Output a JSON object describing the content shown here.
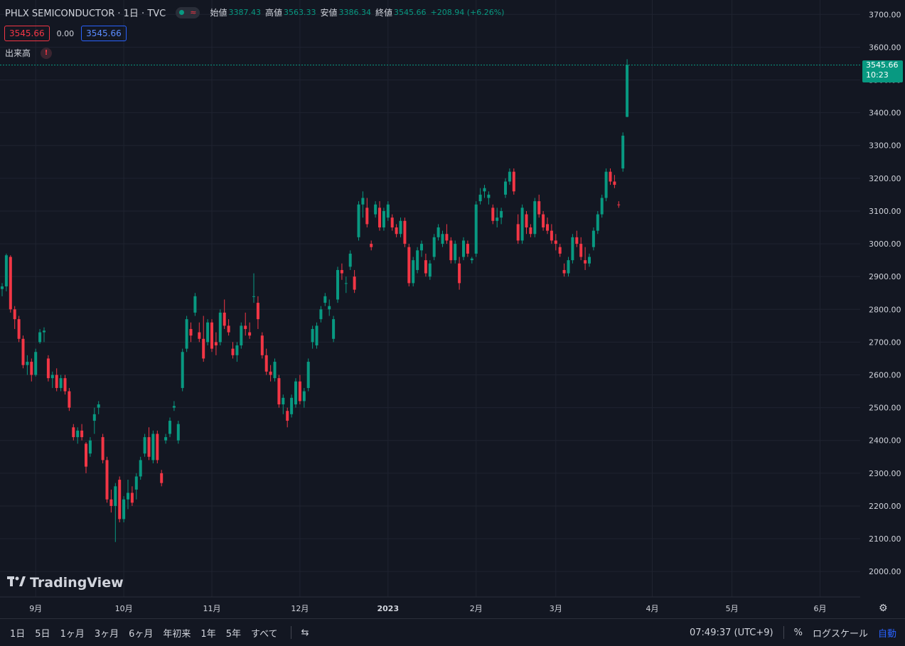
{
  "legend": {
    "symbol": "PHLX SEMICONDUCTOR · 1日 · TVC",
    "open_label": "始値",
    "open": "3387.43",
    "high_label": "高値",
    "high": "3563.33",
    "low_label": "安値",
    "low": "3386.34",
    "close_label": "終値",
    "close": "3545.66",
    "change": "+208.94 (+6.26%)",
    "bid": "3545.66",
    "spread": "0.00",
    "ask": "3545.66",
    "volume_label": "出来高",
    "warn_icon": "!"
  },
  "price_tag": {
    "price": "3545.66",
    "countdown": "10:23"
  },
  "logo": {
    "text": "TradingView"
  },
  "toolbar": {
    "timeframes": [
      "1日",
      "5日",
      "1ヶ月",
      "3ヶ月",
      "6ヶ月",
      "年初来",
      "1年",
      "5年",
      "すべて"
    ],
    "compare_icon": "⇆",
    "clock": "07:49:37 (UTC+9)",
    "percent": "%",
    "log_scale": "ログスケール",
    "auto": "自動"
  },
  "colors": {
    "up": "#089981",
    "down": "#f23645",
    "bg": "#131722",
    "grid": "#1f2330"
  },
  "chart_data": {
    "type": "candlestick",
    "title": "PHLX SEMICONDUCTOR · 1日 · TVC",
    "y_ticks": [
      "3700.00",
      "3600.00",
      "3500.00",
      "3400.00",
      "3300.00",
      "3200.00",
      "3100.00",
      "3000.00",
      "2900.00",
      "2800.00",
      "2700.00",
      "2600.00",
      "2500.00",
      "2400.00",
      "2300.00",
      "2200.00",
      "2100.00",
      "2000.00"
    ],
    "ylim": [
      1970,
      3705
    ],
    "x_ticks": [
      {
        "label": "9月",
        "index": 8
      },
      {
        "label": "10月",
        "index": 29
      },
      {
        "label": "11月",
        "index": 50
      },
      {
        "label": "12月",
        "index": 71
      },
      {
        "label": "2023",
        "index": 92
      },
      {
        "label": "2月",
        "index": 113
      },
      {
        "label": "3月",
        "index": 132
      },
      {
        "label": "4月",
        "index": 155
      },
      {
        "label": "5月",
        "index": 174
      },
      {
        "label": "6月",
        "index": 195
      }
    ],
    "current_price": 3545.66,
    "candles": [
      [
        2862,
        2880,
        2840,
        2870
      ],
      [
        2870,
        2970,
        2855,
        2965
      ],
      [
        2960,
        2965,
        2790,
        2800
      ],
      [
        2800,
        2810,
        2740,
        2770
      ],
      [
        2770,
        2780,
        2700,
        2710
      ],
      [
        2710,
        2720,
        2620,
        2630
      ],
      [
        2630,
        2660,
        2600,
        2640
      ],
      [
        2640,
        2650,
        2580,
        2600
      ],
      [
        2600,
        2680,
        2595,
        2670
      ],
      [
        2700,
        2740,
        2695,
        2730
      ],
      [
        2730,
        2745,
        2700,
        2735
      ],
      [
        2650,
        2660,
        2580,
        2590
      ],
      [
        2590,
        2610,
        2560,
        2600
      ],
      [
        2600,
        2620,
        2550,
        2560
      ],
      [
        2560,
        2600,
        2550,
        2590
      ],
      [
        2590,
        2600,
        2540,
        2550
      ],
      [
        2550,
        2560,
        2490,
        2500
      ],
      [
        2440,
        2450,
        2400,
        2410
      ],
      [
        2410,
        2440,
        2390,
        2430
      ],
      [
        2430,
        2450,
        2400,
        2410
      ],
      [
        2390,
        2395,
        2300,
        2320
      ],
      [
        2360,
        2410,
        2350,
        2400
      ],
      [
        2460,
        2500,
        2420,
        2480
      ],
      [
        2500,
        2520,
        2480,
        2510
      ],
      [
        2410,
        2420,
        2330,
        2340
      ],
      [
        2340,
        2350,
        2210,
        2220
      ],
      [
        2220,
        2250,
        2180,
        2200
      ],
      [
        2200,
        2270,
        2090,
        2260
      ],
      [
        2280,
        2290,
        2150,
        2160
      ],
      [
        2160,
        2230,
        2150,
        2220
      ],
      [
        2220,
        2280,
        2190,
        2240
      ],
      [
        2240,
        2260,
        2200,
        2210
      ],
      [
        2250,
        2300,
        2220,
        2290
      ],
      [
        2290,
        2350,
        2280,
        2340
      ],
      [
        2360,
        2420,
        2350,
        2410
      ],
      [
        2410,
        2440,
        2340,
        2350
      ],
      [
        2340,
        2430,
        2330,
        2420
      ],
      [
        2420,
        2430,
        2330,
        2340
      ],
      [
        2300,
        2310,
        2260,
        2270
      ],
      [
        2400,
        2420,
        2390,
        2410
      ],
      [
        2420,
        2470,
        2410,
        2460
      ],
      [
        2500,
        2520,
        2490,
        2505
      ],
      [
        2400,
        2460,
        2390,
        2450
      ],
      [
        2560,
        2680,
        2550,
        2670
      ],
      [
        2680,
        2780,
        2670,
        2770
      ],
      [
        2740,
        2760,
        2700,
        2720
      ],
      [
        2790,
        2850,
        2780,
        2840
      ],
      [
        2730,
        2760,
        2700,
        2710
      ],
      [
        2710,
        2780,
        2640,
        2650
      ],
      [
        2700,
        2770,
        2690,
        2760
      ],
      [
        2760,
        2770,
        2670,
        2680
      ],
      [
        2700,
        2730,
        2660,
        2690
      ],
      [
        2700,
        2800,
        2690,
        2790
      ],
      [
        2790,
        2830,
        2740,
        2750
      ],
      [
        2750,
        2770,
        2720,
        2730
      ],
      [
        2680,
        2700,
        2650,
        2660
      ],
      [
        2660,
        2700,
        2640,
        2690
      ],
      [
        2690,
        2760,
        2680,
        2750
      ],
      [
        2750,
        2790,
        2720,
        2740
      ],
      [
        2730,
        2760,
        2710,
        2720
      ],
      [
        2840,
        2910,
        2820,
        2840
      ],
      [
        2820,
        2840,
        2740,
        2770
      ],
      [
        2720,
        2730,
        2650,
        2660
      ],
      [
        2660,
        2680,
        2600,
        2610
      ],
      [
        2610,
        2630,
        2580,
        2600
      ],
      [
        2590,
        2650,
        2580,
        2640
      ],
      [
        2590,
        2600,
        2500,
        2510
      ],
      [
        2510,
        2540,
        2480,
        2530
      ],
      [
        2490,
        2500,
        2440,
        2460
      ],
      [
        2480,
        2540,
        2470,
        2530
      ],
      [
        2510,
        2590,
        2500,
        2580
      ],
      [
        2580,
        2600,
        2510,
        2520
      ],
      [
        2520,
        2560,
        2500,
        2550
      ],
      [
        2560,
        2650,
        2550,
        2640
      ],
      [
        2700,
        2750,
        2680,
        2740
      ],
      [
        2690,
        2760,
        2680,
        2750
      ],
      [
        2770,
        2810,
        2760,
        2800
      ],
      [
        2820,
        2850,
        2810,
        2840
      ],
      [
        2800,
        2830,
        2780,
        2810
      ],
      [
        2710,
        2780,
        2700,
        2770
      ],
      [
        2830,
        2930,
        2820,
        2920
      ],
      [
        2920,
        2940,
        2890,
        2910
      ],
      [
        2880,
        2900,
        2850,
        2880
      ],
      [
        2930,
        2980,
        2920,
        2970
      ],
      [
        2900,
        2920,
        2850,
        2860
      ],
      [
        3020,
        3130,
        3010,
        3120
      ],
      [
        3120,
        3160,
        3080,
        3140
      ],
      [
        3110,
        3140,
        3050,
        3060
      ],
      [
        3000,
        3010,
        2980,
        2990
      ],
      [
        3090,
        3130,
        3080,
        3120
      ],
      [
        3110,
        3130,
        3040,
        3050
      ],
      [
        3050,
        3110,
        3040,
        3100
      ],
      [
        3080,
        3130,
        3070,
        3120
      ],
      [
        3080,
        3090,
        3040,
        3050
      ],
      [
        3050,
        3060,
        3020,
        3030
      ],
      [
        3030,
        3080,
        3020,
        3070
      ],
      [
        3070,
        3080,
        2990,
        3000
      ],
      [
        2990,
        3000,
        2870,
        2880
      ],
      [
        2880,
        2960,
        2870,
        2950
      ],
      [
        2920,
        2990,
        2910,
        2980
      ],
      [
        2980,
        3010,
        2960,
        3000
      ],
      [
        2950,
        2970,
        2900,
        2910
      ],
      [
        2900,
        2950,
        2890,
        2940
      ],
      [
        2960,
        3030,
        2950,
        3020
      ],
      [
        3020,
        3060,
        3010,
        3050
      ],
      [
        3000,
        3040,
        2990,
        3030
      ],
      [
        3030,
        3060,
        3000,
        3010
      ],
      [
        3010,
        3020,
        2940,
        2950
      ],
      [
        2950,
        3010,
        2940,
        3000
      ],
      [
        2940,
        2960,
        2860,
        2880
      ],
      [
        2960,
        3020,
        2950,
        3010
      ],
      [
        3000,
        3010,
        2960,
        2970
      ],
      [
        2950,
        2960,
        2940,
        2955
      ],
      [
        2970,
        3130,
        2960,
        3120
      ],
      [
        3130,
        3170,
        3120,
        3150
      ],
      [
        3160,
        3180,
        3140,
        3170
      ],
      [
        3140,
        3160,
        3120,
        3150
      ],
      [
        3110,
        3120,
        3060,
        3070
      ],
      [
        3070,
        3110,
        3050,
        3080
      ],
      [
        3080,
        3110,
        3060,
        3100
      ],
      [
        3150,
        3200,
        3140,
        3190
      ],
      [
        3190,
        3230,
        3180,
        3220
      ],
      [
        3220,
        3230,
        3150,
        3160
      ],
      [
        3060,
        3090,
        3000,
        3010
      ],
      [
        3010,
        3120,
        3000,
        3110
      ],
      [
        3090,
        3100,
        3030,
        3050
      ],
      [
        3050,
        3060,
        3020,
        3030
      ],
      [
        3030,
        3140,
        3020,
        3130
      ],
      [
        3130,
        3150,
        3080,
        3090
      ],
      [
        3090,
        3100,
        3040,
        3050
      ],
      [
        3060,
        3080,
        3030,
        3040
      ],
      [
        3040,
        3060,
        3000,
        3010
      ],
      [
        3010,
        3030,
        2980,
        3000
      ],
      [
        2990,
        3000,
        2960,
        2970
      ],
      [
        2920,
        2940,
        2900,
        2910
      ],
      [
        2910,
        2960,
        2900,
        2950
      ],
      [
        2950,
        3030,
        2940,
        3020
      ],
      [
        3020,
        3040,
        2990,
        3000
      ],
      [
        3000,
        3020,
        2950,
        2960
      ],
      [
        2950,
        2990,
        2920,
        2940
      ],
      [
        2940,
        2970,
        2930,
        2960
      ],
      [
        2990,
        3050,
        2980,
        3040
      ],
      [
        3040,
        3100,
        3030,
        3090
      ],
      [
        3090,
        3150,
        3080,
        3140
      ],
      [
        3140,
        3230,
        3130,
        3220
      ],
      [
        3220,
        3230,
        3180,
        3190
      ],
      [
        3190,
        3210,
        3170,
        3180
      ],
      [
        3120,
        3130,
        3110,
        3118
      ],
      [
        3230,
        3340,
        3220,
        3330
      ],
      [
        3387.43,
        3563.33,
        3386.34,
        3545.66
      ]
    ]
  }
}
